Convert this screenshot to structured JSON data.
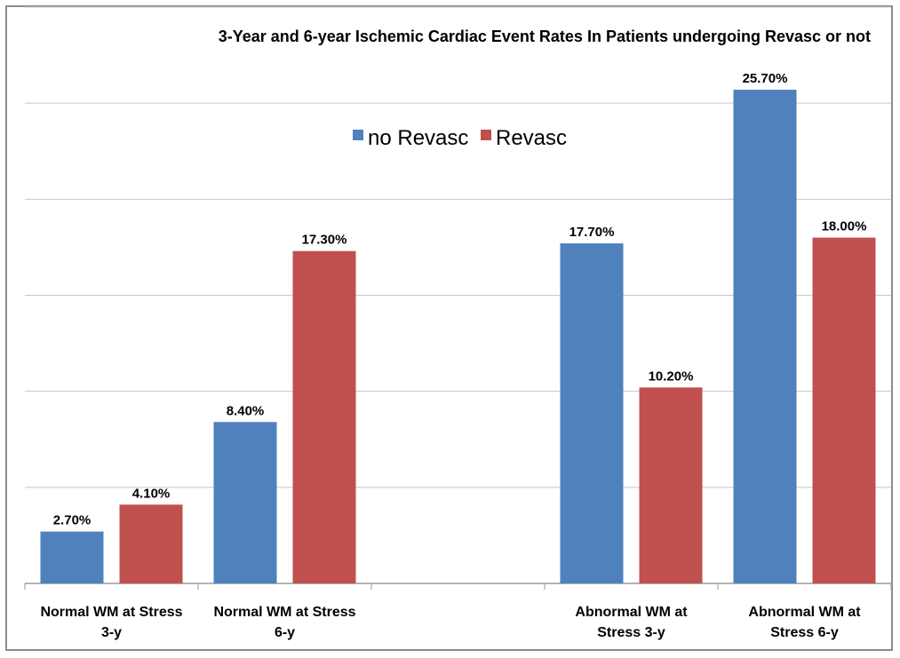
{
  "chart_data": {
    "type": "bar",
    "title": "3-Year and 6-year Ischemic Cardiac Event Rates In Patients undergoing Revasc or not",
    "xlabel": "",
    "ylabel": "",
    "categories": [
      [
        "Normal WM at Stress",
        "3-y"
      ],
      [
        "Normal WM at Stress",
        "6-y"
      ],
      [
        "",
        ""
      ],
      [
        "Abnormal WM at",
        "Stress 3-y"
      ],
      [
        "Abnormal WM at",
        "Stress 6-y"
      ]
    ],
    "series": [
      {
        "name": "no Revasc",
        "color": "#4f81bd",
        "values": [
          2.7,
          8.4,
          null,
          17.7,
          25.7
        ],
        "labels": [
          "2.70%",
          "8.40%",
          "",
          "17.70%",
          "25.70%"
        ]
      },
      {
        "name": "Revasc",
        "color": "#c0504d",
        "values": [
          4.1,
          17.3,
          null,
          10.2,
          18.0
        ],
        "labels": [
          "4.10%",
          "17.30%",
          "",
          "10.20%",
          "18.00%"
        ]
      }
    ],
    "ylim": [
      0,
      30
    ],
    "grid": true,
    "legend_position": "top-center"
  }
}
